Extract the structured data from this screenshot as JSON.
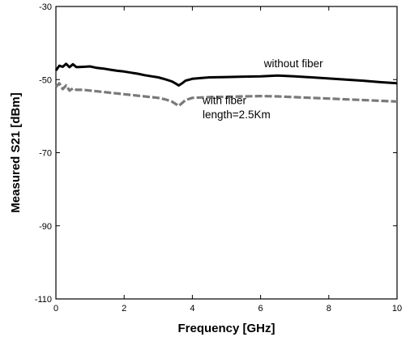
{
  "chart_data": {
    "type": "line",
    "title": "",
    "xlabel": "Frequency [GHz]",
    "ylabel": "Measured S21 [dBm]",
    "xlim": [
      0,
      10
    ],
    "ylim": [
      -110,
      -30
    ],
    "xticks": [
      0,
      2,
      4,
      6,
      8,
      10
    ],
    "yticks": [
      -30,
      -50,
      -70,
      -90,
      -110
    ],
    "grid": false,
    "legend": "none",
    "series": [
      {
        "color": "#000000",
        "style": "solid",
        "x": [
          0,
          0.1,
          0.2,
          0.3,
          0.4,
          0.5,
          0.6,
          0.8,
          1.0,
          1.2,
          1.4,
          1.6,
          1.8,
          2.0,
          2.2,
          2.4,
          2.6,
          2.8,
          3.0,
          3.2,
          3.4,
          3.5,
          3.6,
          3.7,
          3.8,
          4.0,
          4.5,
          5.0,
          5.5,
          6.0,
          6.5,
          7.0,
          7.5,
          8.0,
          8.5,
          9.0,
          9.5,
          10.0
        ],
        "y": [
          -47.5,
          -46.2,
          -46.5,
          -45.7,
          -46.6,
          -45.8,
          -46.6,
          -46.5,
          -46.4,
          -46.8,
          -47.0,
          -47.3,
          -47.6,
          -47.8,
          -48.1,
          -48.4,
          -48.8,
          -49.1,
          -49.4,
          -49.9,
          -50.5,
          -51.0,
          -51.6,
          -51.0,
          -50.3,
          -49.8,
          -49.4,
          -49.3,
          -49.2,
          -49.1,
          -48.9,
          -49.1,
          -49.4,
          -49.7,
          -50.0,
          -50.3,
          -50.7,
          -51.0
        ]
      },
      {
        "color": "#7a7a7a",
        "style": "dashed",
        "x": [
          0,
          0.1,
          0.2,
          0.3,
          0.4,
          0.5,
          0.6,
          0.8,
          1.0,
          1.2,
          1.4,
          1.6,
          1.8,
          2.0,
          2.2,
          2.4,
          2.6,
          2.8,
          3.0,
          3.2,
          3.4,
          3.5,
          3.6,
          3.7,
          3.8,
          4.0,
          4.5,
          5.0,
          5.5,
          6.0,
          6.5,
          7.0,
          7.5,
          8.0,
          8.5,
          9.0,
          9.5,
          10.0
        ],
        "y": [
          -52.0,
          -51.0,
          -52.6,
          -51.6,
          -53.0,
          -52.4,
          -52.8,
          -52.8,
          -53.0,
          -53.2,
          -53.4,
          -53.6,
          -53.8,
          -54.0,
          -54.2,
          -54.4,
          -54.6,
          -54.8,
          -55.0,
          -55.4,
          -56.0,
          -56.6,
          -57.2,
          -56.4,
          -55.6,
          -55.0,
          -54.8,
          -54.7,
          -54.6,
          -54.5,
          -54.6,
          -54.8,
          -55.0,
          -55.2,
          -55.4,
          -55.6,
          -55.8,
          -56.0
        ]
      }
    ],
    "annotations": [
      {
        "text": "without fiber",
        "x": 6.1,
        "y": -46.6
      },
      {
        "text": "with fiber",
        "x": 4.3,
        "y": -56.7
      },
      {
        "text": "length=2.5Km",
        "x": 4.3,
        "y": -60.6
      }
    ]
  }
}
